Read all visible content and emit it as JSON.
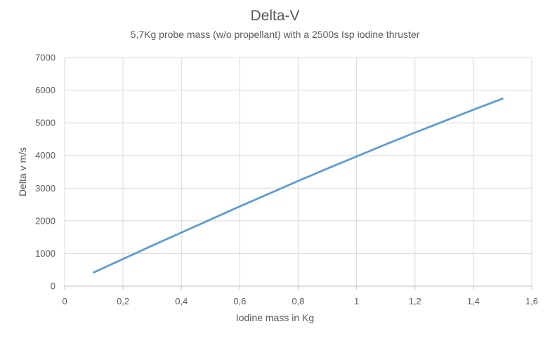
{
  "chart_data": {
    "type": "line",
    "title": "Delta-V",
    "subtitle": "5,7Kg probe mass (w/o propellant) with a 2500s Isp iodine thruster",
    "xlabel": "Iodine mass in Kg",
    "ylabel": "Delta v m/s",
    "xlim": [
      0,
      1.6
    ],
    "ylim": [
      0,
      7000
    ],
    "x_ticks": [
      "0",
      "0,2",
      "0,4",
      "0,6",
      "0,8",
      "1",
      "1,2",
      "1,4",
      "1,6"
    ],
    "y_ticks": [
      "0",
      "1000",
      "2000",
      "3000",
      "4000",
      "5000",
      "6000",
      "7000"
    ],
    "x_tick_values": [
      0,
      0.2,
      0.4,
      0.6,
      0.8,
      1.0,
      1.2,
      1.4,
      1.6
    ],
    "y_tick_values": [
      0,
      1000,
      2000,
      3000,
      4000,
      5000,
      6000,
      7000
    ],
    "grid": true,
    "legend": "none",
    "series": [
      {
        "color": "#5b9bd5",
        "x": [
          0.1,
          0.2,
          0.3,
          0.4,
          0.5,
          0.6,
          0.7,
          0.8,
          0.9,
          1.0,
          1.1,
          1.2,
          1.3,
          1.4,
          1.5
        ],
        "y": [
          420,
          830,
          1240,
          1640,
          2040,
          2440,
          2830,
          3220,
          3600,
          3970,
          4340,
          4700,
          5050,
          5400,
          5740
        ]
      }
    ]
  }
}
